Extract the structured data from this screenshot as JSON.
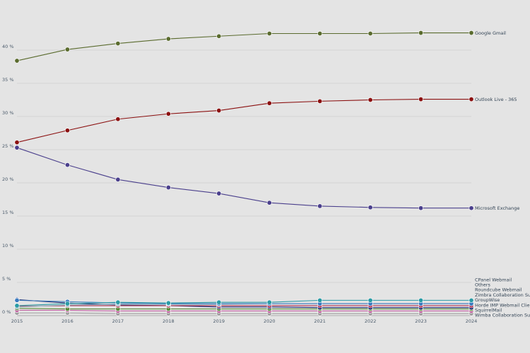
{
  "chart_data": {
    "type": "line",
    "x": [
      "2015",
      "2016",
      "2017",
      "2018",
      "2019",
      "2020",
      "2021",
      "2022",
      "2023",
      "2024"
    ],
    "y_ticks": [
      "0 %",
      "5 %",
      "10 %",
      "15 %",
      "20 %",
      "25 %",
      "30 %",
      "35 %",
      "40 %"
    ],
    "ylim": [
      0,
      45
    ],
    "grid": true,
    "series": [
      {
        "name": "Google Gmail",
        "color": "#5a6b2e",
        "values": [
          38.4,
          40.1,
          41.0,
          41.7,
          42.1,
          42.5,
          42.5,
          42.5,
          42.6,
          42.6
        ]
      },
      {
        "name": "Outlook Live - 365",
        "color": "#8b1010",
        "values": [
          26.1,
          27.9,
          29.6,
          30.4,
          30.9,
          32.0,
          32.3,
          32.5,
          32.6,
          32.6
        ]
      },
      {
        "name": "Microsoft Exchange",
        "color": "#4a3f8c",
        "values": [
          25.3,
          22.7,
          20.5,
          19.3,
          18.4,
          17.0,
          16.5,
          16.3,
          16.2,
          16.2
        ]
      },
      {
        "name": "CPanel Webmail",
        "color": "#2a9ba5",
        "values": [
          1.5,
          1.8,
          2.0,
          1.9,
          2.0,
          2.0,
          2.3,
          2.3,
          2.3,
          2.3
        ]
      },
      {
        "name": "Others",
        "color": "#3a7bbf",
        "values": [
          2.3,
          2.1,
          1.9,
          1.8,
          1.8,
          1.8,
          1.8,
          1.8,
          1.8,
          1.8
        ]
      },
      {
        "name": "Roundcube Webmail",
        "color": "#8ab0c0",
        "values": [
          1.3,
          1.6,
          1.7,
          1.7,
          1.7,
          1.8,
          1.8,
          1.8,
          1.8,
          1.8
        ]
      },
      {
        "name": "Zimbra Collaboration Suite",
        "color": "#b03050",
        "values": [
          1.4,
          1.5,
          1.5,
          1.5,
          1.5,
          1.5,
          1.5,
          1.5,
          1.5,
          1.5
        ]
      },
      {
        "name": "GroupWise",
        "color": "#1a2a70",
        "values": [
          2.4,
          1.9,
          1.6,
          1.5,
          1.3,
          1.3,
          1.2,
          1.2,
          1.2,
          1.2
        ]
      },
      {
        "name": "Horde IMP Webmail Client",
        "color": "#5a8a3a",
        "values": [
          1.1,
          1.0,
          1.0,
          1.0,
          1.0,
          1.0,
          1.0,
          1.0,
          1.0,
          1.0
        ]
      },
      {
        "name": "SquirrelMail",
        "color": "#c060a0",
        "values": [
          0.8,
          0.8,
          0.7,
          0.7,
          0.7,
          0.7,
          0.7,
          0.7,
          0.7,
          0.7
        ]
      },
      {
        "name": "Wimba Collaboration Suite",
        "color": "#a0a0a0",
        "values": [
          0.4,
          0.4,
          0.3,
          0.3,
          0.3,
          0.3,
          0.3,
          0.3,
          0.3,
          0.3
        ]
      }
    ],
    "end_label_order": [
      "Google Gmail",
      "Outlook Live - 365",
      "Microsoft Exchange",
      "CPanel Webmail",
      "Others",
      "Roundcube Webmail",
      "Zimbra Collaboration Suite",
      "GroupWise",
      "Horde IMP Webmail Client",
      "SquirrelMail",
      "Wimba Collaboration Suite"
    ]
  }
}
